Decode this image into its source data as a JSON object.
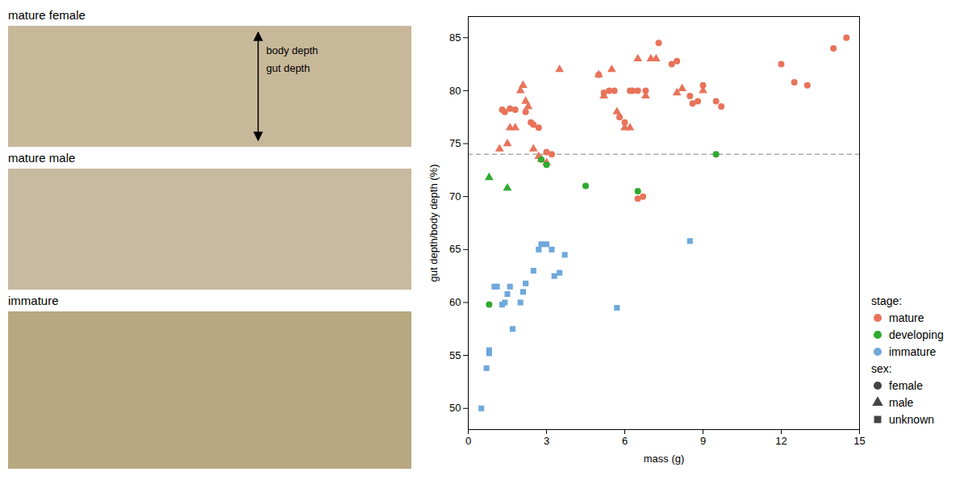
{
  "chart_data": {
    "type": "scatter",
    "xlabel": "mass (g)",
    "ylabel": "gut depth/body depth (%)",
    "xlim": [
      0,
      15
    ],
    "ylim": [
      48,
      87
    ],
    "xticks": [
      0,
      3,
      6,
      9,
      12,
      15
    ],
    "yticks": [
      50,
      55,
      60,
      65,
      70,
      75,
      80,
      85
    ],
    "grid": false,
    "legend": "lower right",
    "series": [
      {
        "stage": "mature",
        "sex": "female",
        "color": "#E8735A",
        "marker": "circle",
        "values": [
          [
            1.3,
            78.2
          ],
          [
            1.4,
            78.0
          ],
          [
            1.6,
            78.3
          ],
          [
            1.8,
            78.2
          ],
          [
            2.2,
            78.0
          ],
          [
            2.4,
            77.0
          ],
          [
            2.5,
            76.8
          ],
          [
            2.7,
            76.5
          ],
          [
            3.0,
            74.2
          ],
          [
            3.2,
            74.0
          ],
          [
            5.0,
            81.5
          ],
          [
            5.2,
            79.8
          ],
          [
            5.4,
            80.0
          ],
          [
            5.6,
            80.0
          ],
          [
            5.8,
            77.5
          ],
          [
            6.0,
            77.0
          ],
          [
            6.2,
            80.0
          ],
          [
            6.3,
            80.0
          ],
          [
            6.5,
            80.0
          ],
          [
            6.8,
            80.0
          ],
          [
            7.3,
            84.5
          ],
          [
            7.8,
            82.5
          ],
          [
            8.0,
            82.8
          ],
          [
            8.5,
            79.5
          ],
          [
            8.6,
            78.8
          ],
          [
            8.8,
            79.0
          ],
          [
            9.0,
            80.5
          ],
          [
            9.5,
            79.0
          ],
          [
            9.7,
            78.5
          ],
          [
            12.0,
            82.5
          ],
          [
            12.5,
            80.8
          ],
          [
            13.0,
            80.5
          ],
          [
            14.0,
            84.0
          ],
          [
            14.5,
            85.0
          ],
          [
            6.7,
            70.0
          ],
          [
            6.5,
            69.8
          ]
        ]
      },
      {
        "stage": "mature",
        "sex": "male",
        "color": "#E8735A",
        "marker": "triangle",
        "values": [
          [
            1.2,
            74.5
          ],
          [
            1.5,
            75.0
          ],
          [
            1.6,
            76.5
          ],
          [
            1.8,
            76.5
          ],
          [
            2.0,
            80.0
          ],
          [
            2.1,
            80.5
          ],
          [
            2.2,
            79.0
          ],
          [
            2.3,
            78.5
          ],
          [
            2.5,
            74.5
          ],
          [
            2.7,
            73.8
          ],
          [
            2.8,
            73.5
          ],
          [
            3.0,
            73.2
          ],
          [
            3.5,
            82.0
          ],
          [
            5.0,
            81.5
          ],
          [
            5.2,
            79.5
          ],
          [
            5.5,
            82.0
          ],
          [
            5.7,
            78.0
          ],
          [
            6.0,
            76.5
          ],
          [
            6.2,
            76.5
          ],
          [
            6.5,
            83.0
          ],
          [
            6.8,
            79.5
          ],
          [
            7.0,
            83.0
          ],
          [
            7.2,
            83.0
          ],
          [
            8.0,
            79.8
          ],
          [
            8.2,
            80.2
          ],
          [
            9.0,
            80.0
          ]
        ]
      },
      {
        "stage": "developing",
        "sex": "female",
        "color": "#2EAA2E",
        "marker": "circle",
        "values": [
          [
            0.8,
            59.8
          ],
          [
            2.8,
            73.5
          ],
          [
            3.0,
            73.0
          ],
          [
            4.5,
            71.0
          ],
          [
            6.5,
            70.5
          ],
          [
            9.5,
            74.0
          ]
        ]
      },
      {
        "stage": "developing",
        "sex": "male",
        "color": "#2EAA2E",
        "marker": "triangle",
        "values": [
          [
            0.8,
            71.8
          ],
          [
            1.5,
            70.8
          ]
        ]
      },
      {
        "stage": "immature",
        "sex": "unknown",
        "color": "#6FA8DC",
        "marker": "square",
        "values": [
          [
            0.5,
            50.0
          ],
          [
            0.7,
            53.8
          ],
          [
            0.8,
            55.2
          ],
          [
            0.8,
            55.5
          ],
          [
            1.0,
            61.5
          ],
          [
            1.1,
            61.5
          ],
          [
            1.3,
            59.8
          ],
          [
            1.4,
            60.0
          ],
          [
            1.5,
            60.8
          ],
          [
            1.6,
            61.5
          ],
          [
            1.7,
            57.5
          ],
          [
            2.0,
            60.0
          ],
          [
            2.1,
            61.0
          ],
          [
            2.2,
            61.8
          ],
          [
            2.5,
            63.0
          ],
          [
            2.7,
            65.0
          ],
          [
            2.8,
            65.5
          ],
          [
            3.0,
            65.5
          ],
          [
            3.2,
            65.0
          ],
          [
            3.3,
            62.5
          ],
          [
            3.5,
            62.8
          ],
          [
            3.7,
            64.5
          ],
          [
            5.7,
            59.5
          ],
          [
            8.5,
            65.8
          ]
        ]
      }
    ],
    "lines": [
      {
        "y": 74.0,
        "color": "#AAAAAA",
        "line_style": "dashed"
      }
    ],
    "legend_groups": [
      {
        "title": "stage:",
        "entries": [
          {
            "label": "mature",
            "color": "#E8735A",
            "marker": "circle"
          },
          {
            "label": "developing",
            "color": "#2EAA2E",
            "marker": "circle"
          },
          {
            "label": "immature",
            "color": "#6FA8DC",
            "marker": "circle"
          }
        ]
      },
      {
        "title": "sex:",
        "entries": [
          {
            "label": "female",
            "color": "#444444",
            "marker": "circle"
          },
          {
            "label": "male",
            "color": "#444444",
            "marker": "triangle"
          },
          {
            "label": "unknown",
            "color": "#444444",
            "marker": "square"
          }
        ]
      }
    ],
    "panel_labels": [
      "mature female",
      "mature male",
      "immature"
    ],
    "annotations": [
      "body depth",
      "gut depth"
    ]
  }
}
